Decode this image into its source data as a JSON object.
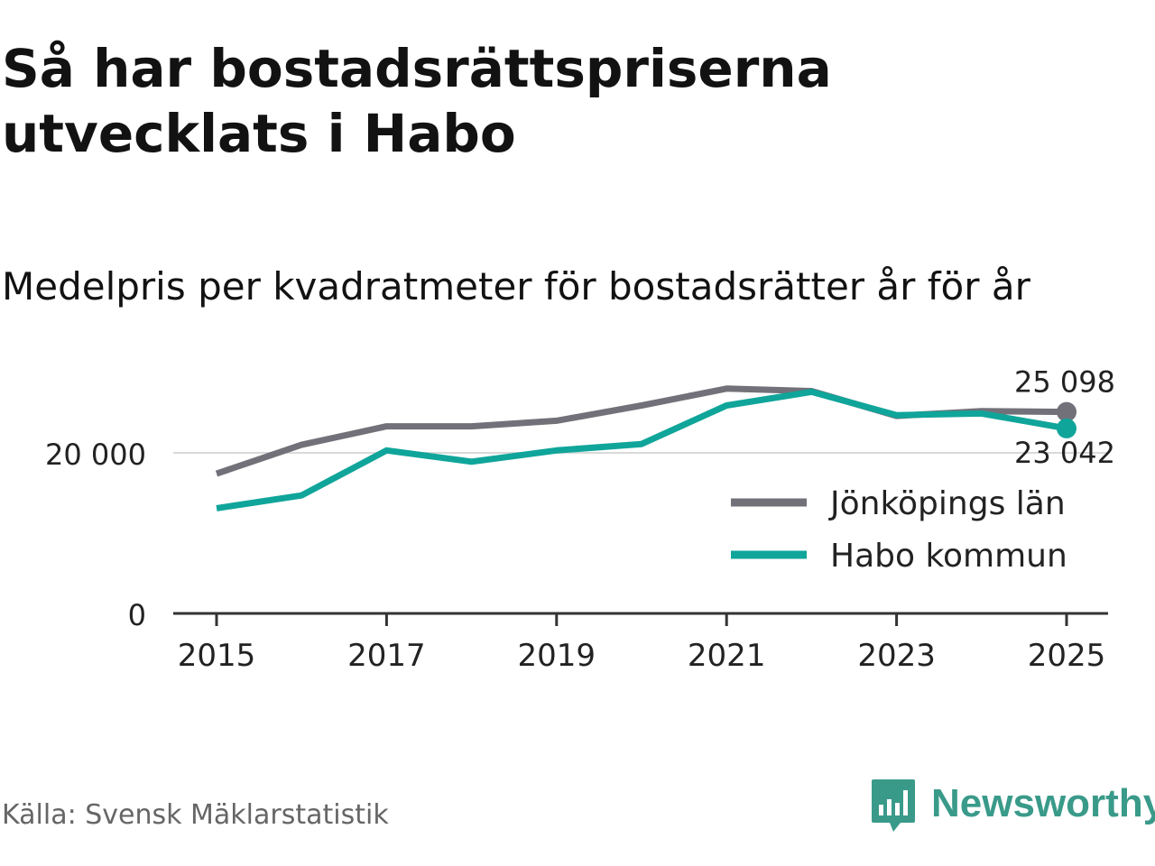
{
  "title": "Så har bostadsrättspriserna utvecklats i Habo",
  "subtitle": "Medelpris per kvadratmeter för bostadsrätter år för år",
  "source": "Källa: Svensk Mäklarstatistik",
  "brand": "Newsworthy",
  "colors": {
    "lan": "#727179",
    "kommun": "#10a59a",
    "axis": "#333333",
    "grid": "#d9d9d9",
    "text": "#222222",
    "brand": "#3a9a8a"
  },
  "chart_data": {
    "type": "line",
    "title": "Medelpris per kvadratmeter för bostadsrätter år för år",
    "xlabel": "",
    "ylabel": "",
    "x": [
      2015,
      2016,
      2017,
      2018,
      2019,
      2020,
      2021,
      2022,
      2023,
      2024,
      2025
    ],
    "xlim": [
      2014.5,
      2025.5
    ],
    "ylim": [
      0,
      30000
    ],
    "x_ticks": [
      2015,
      2017,
      2019,
      2021,
      2023,
      2025
    ],
    "x_tick_labels": [
      "2015",
      "2017",
      "2019",
      "2021",
      "2023",
      "2025"
    ],
    "y_ticks": [
      0,
      20000
    ],
    "y_tick_labels": [
      "0",
      "20 000"
    ],
    "grid": "horizontal",
    "legend_position": "right",
    "series": [
      {
        "name": "Jönköpings län",
        "color_key": "lan",
        "values": [
          17400,
          21000,
          23300,
          23300,
          24000,
          25900,
          28000,
          27700,
          24600,
          25200,
          25098
        ],
        "end_label": "25 098"
      },
      {
        "name": "Habo kommun",
        "color_key": "kommun",
        "values": [
          13100,
          14700,
          20300,
          18900,
          20300,
          21100,
          25900,
          27600,
          24700,
          24900,
          23042
        ],
        "end_label": "23 042"
      }
    ]
  }
}
